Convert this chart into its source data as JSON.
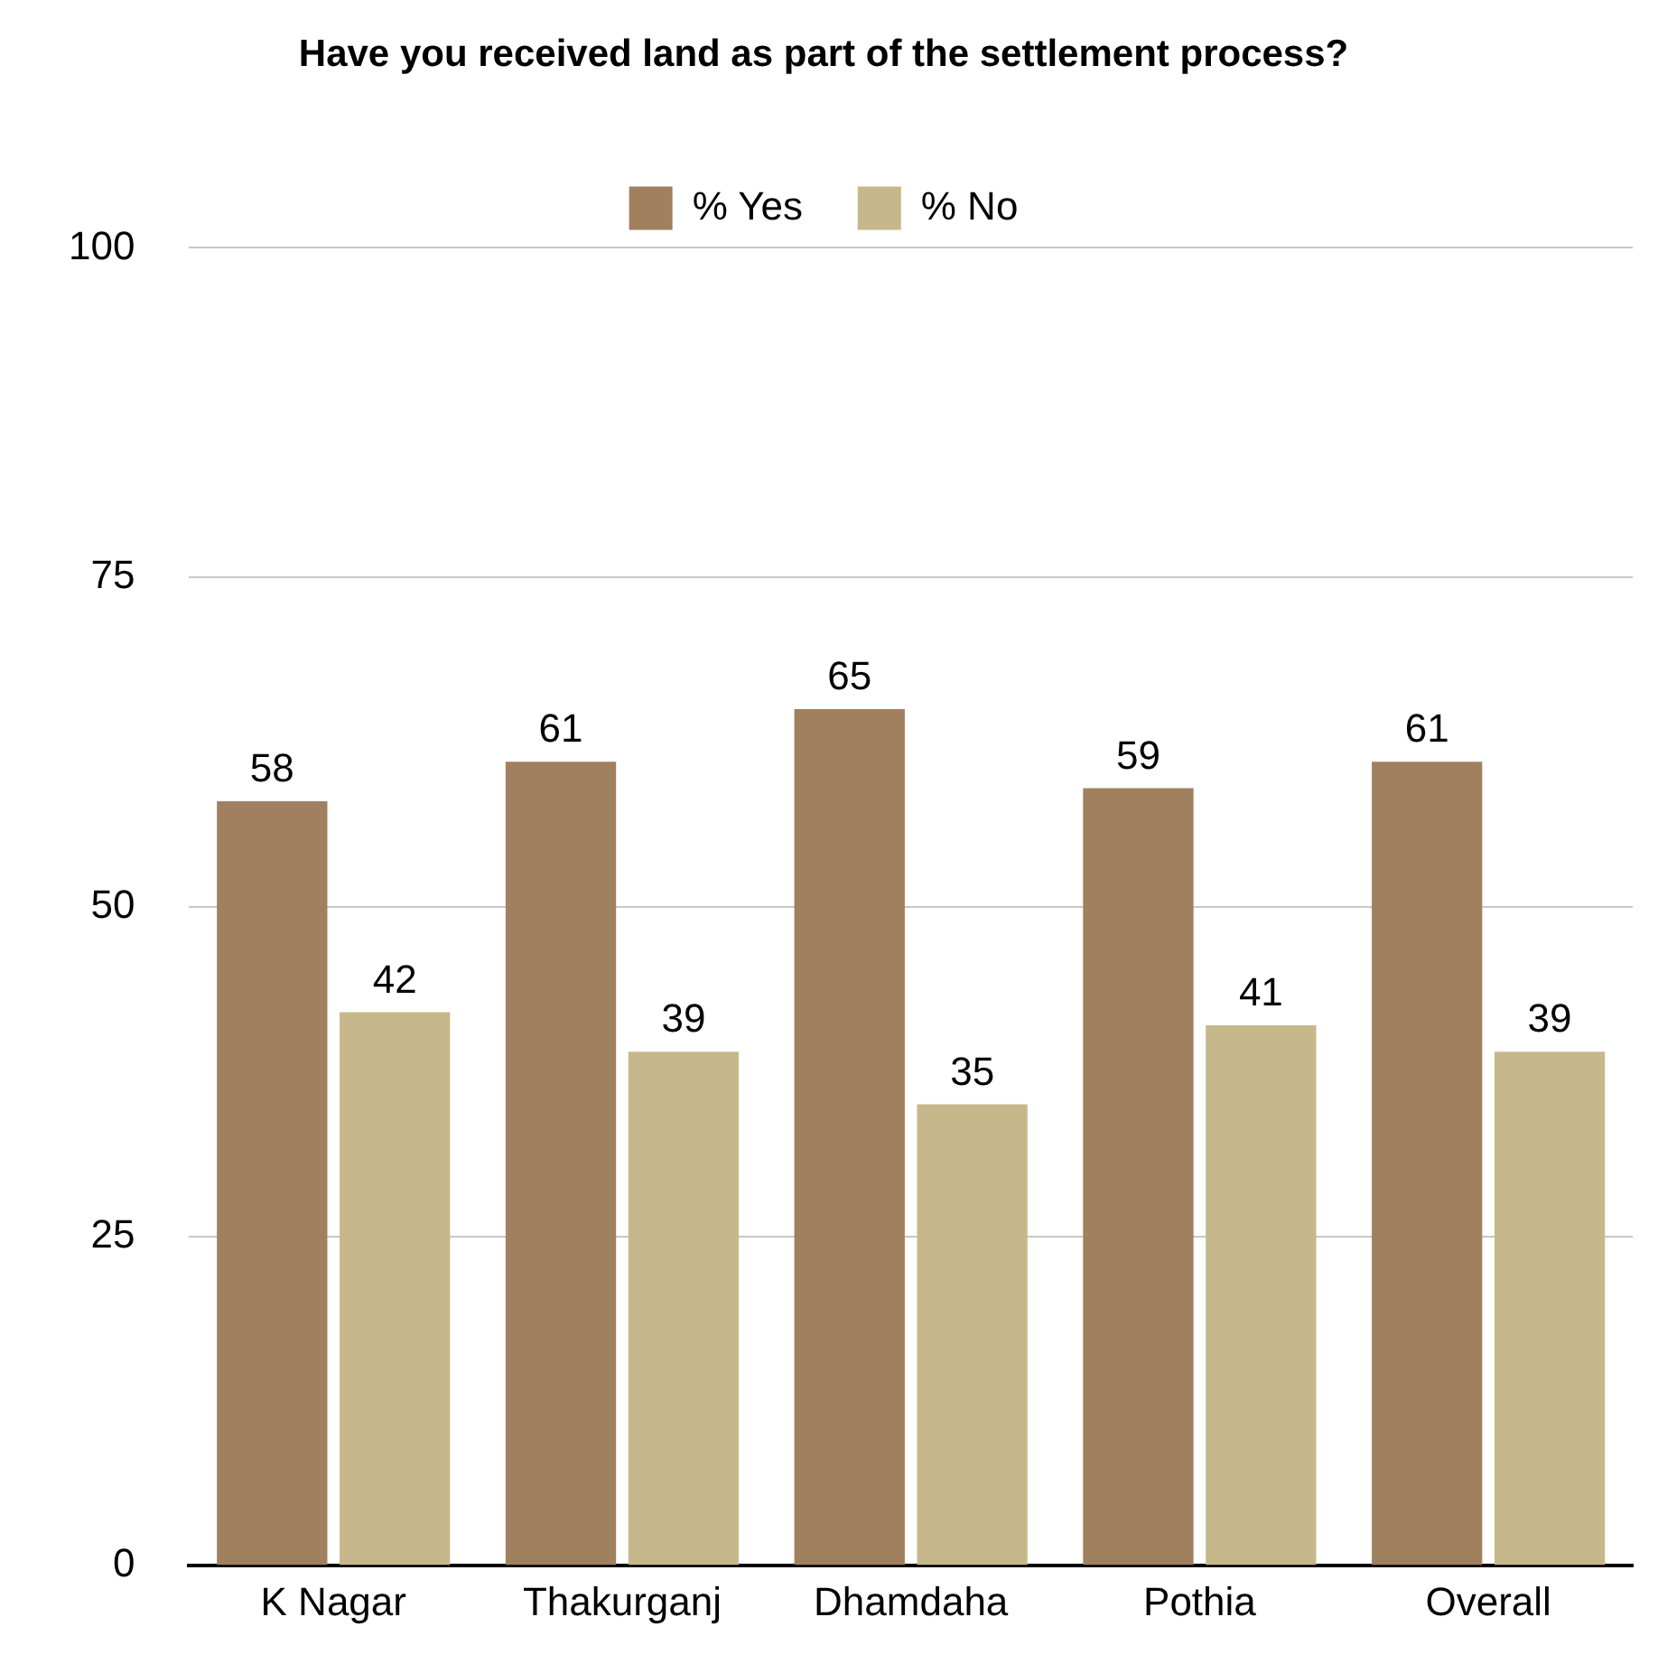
{
  "chart_data": {
    "type": "bar",
    "title": "Have you received land as part of the settlement process?",
    "categories": [
      "K Nagar",
      "Thakurganj",
      "Dhamdaha",
      "Pothia",
      "Overall"
    ],
    "series": [
      {
        "name": "% Yes",
        "color": "#a0805f",
        "values": [
          58,
          61,
          65,
          59,
          61
        ]
      },
      {
        "name": "% No",
        "color": "#c6b88a",
        "values": [
          42,
          39,
          35,
          41,
          39
        ]
      }
    ],
    "ylim": [
      0,
      100
    ],
    "yticks": [
      0,
      25,
      50,
      75,
      100
    ],
    "grid": "y",
    "legend": "top",
    "data_labels": true
  }
}
